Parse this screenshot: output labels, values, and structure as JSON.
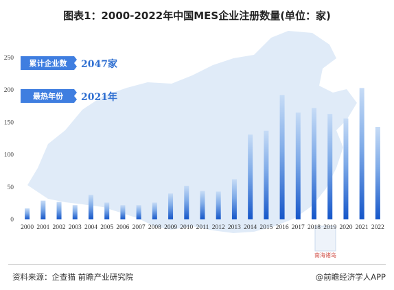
{
  "title": "图表1：2000-2022年中国MES企业注册数量(单位：家)",
  "badges": [
    {
      "label": "累计企业数",
      "value": "2047家"
    },
    {
      "label": "最热年份",
      "value": "2021年"
    }
  ],
  "map_label": "南海诸岛",
  "footer": {
    "source": "资料来源：企查猫 前瞻产业研究院",
    "brand": "@前瞻经济学人APP"
  },
  "colors": {
    "bar_top": "#b9d4f4",
    "bar_bottom": "#1a5fd0",
    "badge": "#3f7ee0",
    "map": "#dce9f7"
  },
  "chart_data": {
    "type": "bar",
    "categories": [
      "2000",
      "2001",
      "2002",
      "2003",
      "2004",
      "2005",
      "2006",
      "2007",
      "2008",
      "2009",
      "2010",
      "2011",
      "2012",
      "2013",
      "2014",
      "2015",
      "2016",
      "2017",
      "2018",
      "2019",
      "2020",
      "2021",
      "2022"
    ],
    "values": [
      17,
      29,
      27,
      22,
      38,
      26,
      22,
      22,
      26,
      40,
      52,
      44,
      43,
      62,
      131,
      137,
      192,
      165,
      172,
      163,
      156,
      203,
      143
    ],
    "ylim": [
      0,
      250
    ],
    "yticks": [
      0,
      50,
      100,
      150,
      200,
      250
    ],
    "xlabel": "",
    "ylabel": ""
  }
}
